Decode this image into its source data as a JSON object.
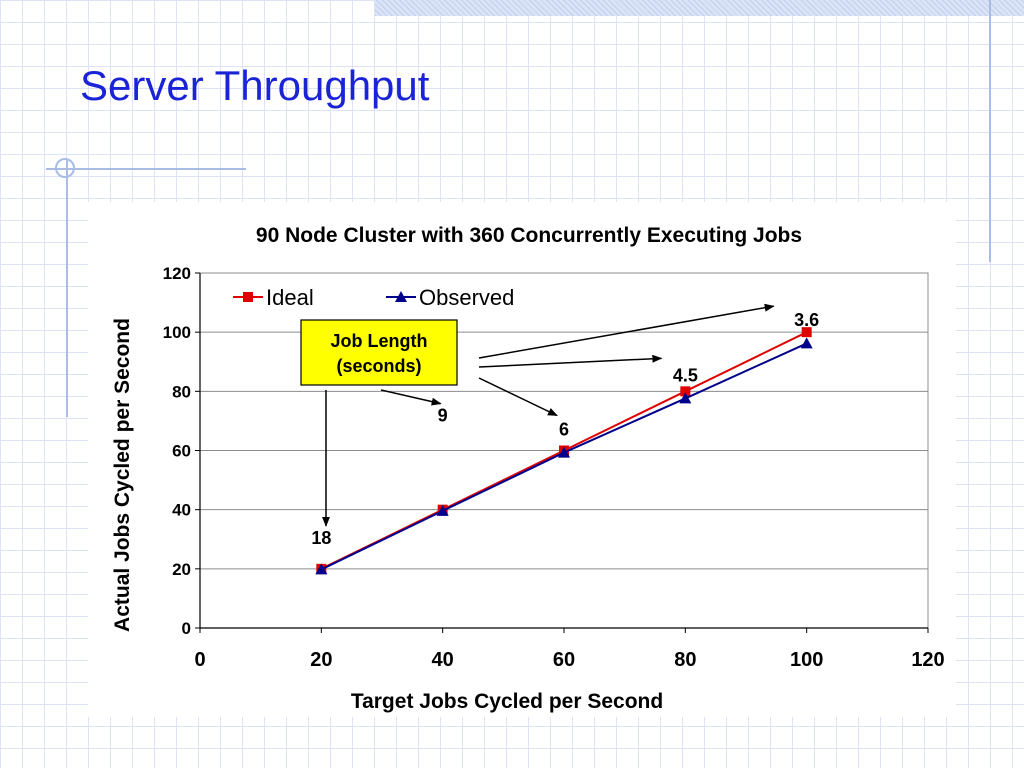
{
  "slide": {
    "title": "Server Throughput"
  },
  "chart_data": {
    "type": "line",
    "title": "90 Node Cluster with 360 Concurrently Executing Jobs",
    "xlabel": "Target Jobs Cycled per Second",
    "ylabel": "Actual Jobs Cycled per Second",
    "xlim": [
      0,
      120
    ],
    "ylim": [
      0,
      120
    ],
    "x_ticks": [
      0,
      20,
      40,
      60,
      80,
      100,
      120
    ],
    "y_ticks": [
      0,
      20,
      40,
      60,
      80,
      100,
      120
    ],
    "grid": "horizontal",
    "legend_position": "top-left",
    "series": [
      {
        "name": "Ideal",
        "color": "#e00000",
        "marker": "square",
        "x": [
          20,
          40,
          60,
          80,
          100
        ],
        "y": [
          20,
          40,
          60,
          80,
          100
        ]
      },
      {
        "name": "Observed",
        "color": "#00008b",
        "marker": "triangle",
        "x": [
          20,
          40,
          60,
          80,
          100
        ],
        "y": [
          19.8,
          39.6,
          59.3,
          77.6,
          96.2
        ]
      }
    ],
    "callout": {
      "text_lines": [
        "Job Length",
        "(seconds)"
      ],
      "background": "#ffff00"
    },
    "annotations": [
      {
        "text": "18",
        "x": 20
      },
      {
        "text": "9",
        "x": 40
      },
      {
        "text": "6",
        "x": 60
      },
      {
        "text": "4.5",
        "x": 80
      },
      {
        "text": "3.6",
        "x": 100
      }
    ]
  }
}
